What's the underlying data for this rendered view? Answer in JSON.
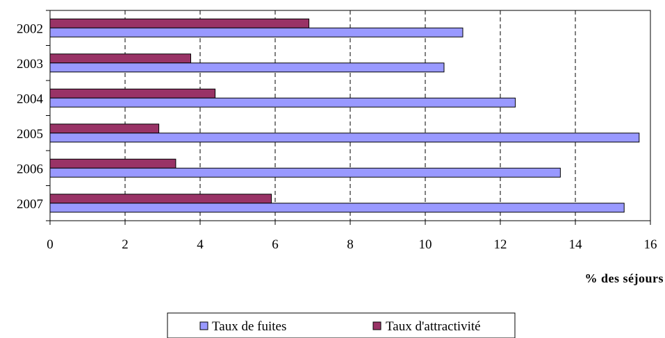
{
  "chart_data": {
    "type": "bar",
    "orientation": "horizontal",
    "categories": [
      "2002",
      "2003",
      "2004",
      "2005",
      "2006",
      "2007"
    ],
    "series": [
      {
        "name": "Taux de fuites",
        "values": [
          11.0,
          10.5,
          12.4,
          15.7,
          13.6,
          15.3
        ],
        "color": "#9999ff"
      },
      {
        "name": "Taux d'attractivité",
        "values": [
          6.9,
          3.75,
          4.4,
          2.9,
          3.35,
          5.9
        ],
        "color": "#993366"
      }
    ],
    "xlabel": "% des séjours",
    "ylabel": "",
    "xlim": [
      0,
      16
    ],
    "xticks": [
      "0",
      "2",
      "4",
      "6",
      "8",
      "10",
      "12",
      "14",
      "16"
    ],
    "grid": "vertical-dashed",
    "legend_position": "bottom-center"
  }
}
